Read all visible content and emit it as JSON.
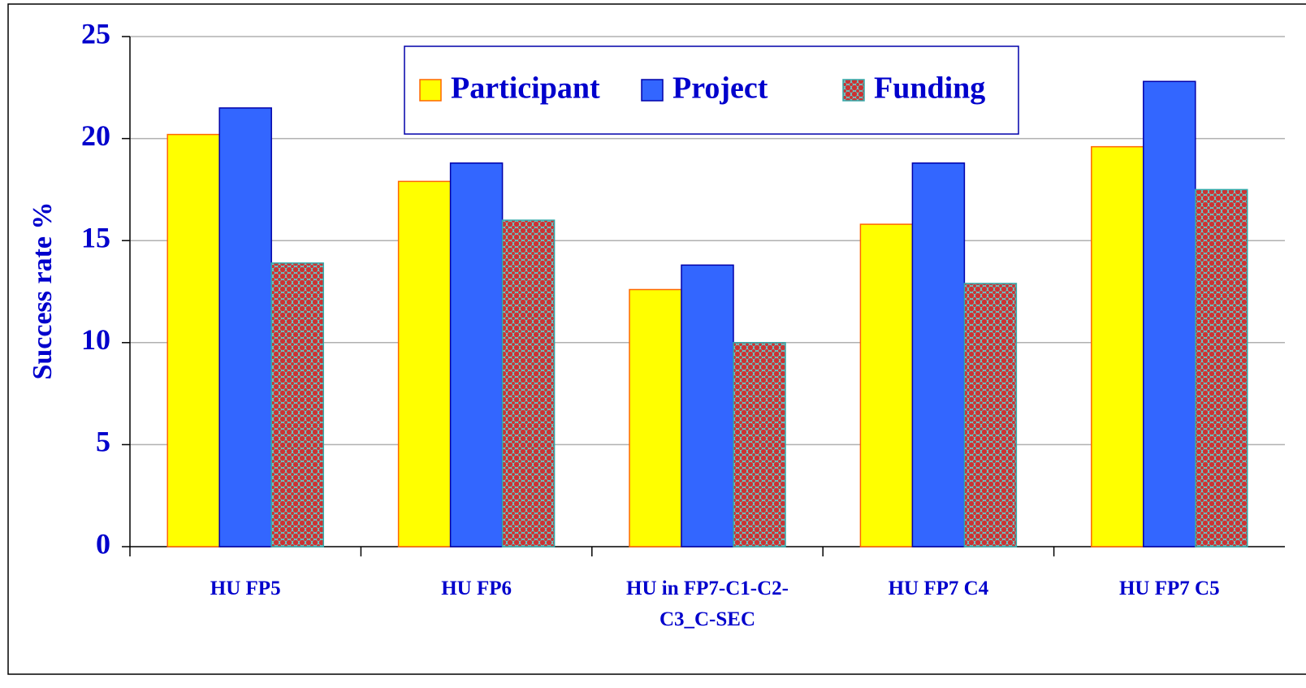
{
  "chart_data": {
    "type": "bar",
    "ylabel": "Success rate %",
    "categories": [
      "HU FP5",
      "HU FP6",
      "HU in FP7-C1-C2-C3_C-SEC",
      "HU FP7 C4",
      "HU FP7 C5"
    ],
    "series": [
      {
        "name": "Participant",
        "color": "#ffff00",
        "values": [
          20.2,
          17.9,
          12.6,
          15.8,
          19.6
        ]
      },
      {
        "name": "Project",
        "color": "#3366ff",
        "values": [
          21.5,
          18.8,
          13.8,
          18.8,
          22.8
        ]
      },
      {
        "name": "Funding",
        "color": "#cc3333",
        "pattern": "dots",
        "values": [
          13.9,
          16.0,
          10.0,
          12.9,
          17.5
        ]
      }
    ],
    "ylim": [
      0,
      25
    ],
    "yticks": [
      0,
      5,
      10,
      15,
      20,
      25
    ],
    "grid": true,
    "legend": "top"
  }
}
